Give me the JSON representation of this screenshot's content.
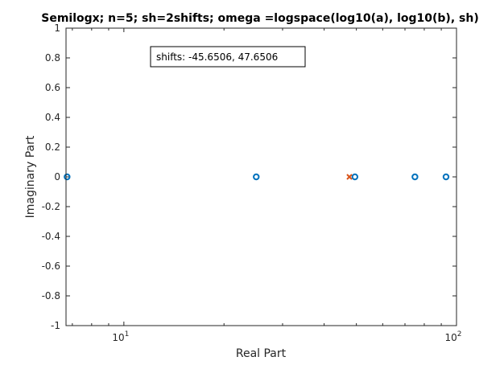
{
  "chart_data": {
    "type": "scatter",
    "title": "Semilogx; n=5; sh=2shifts; omega =logspace(log10(a), log10(b), sh)",
    "xlabel": "Real Part",
    "ylabel": "Imaginary Part",
    "xscale": "log",
    "xlim": [
      6.7,
      100
    ],
    "ylim": [
      -1,
      1
    ],
    "x_ticks": [
      {
        "value": 10,
        "base": "10",
        "exp": "1"
      },
      {
        "value": 100,
        "base": "10",
        "exp": "2"
      }
    ],
    "y_ticks": [
      {
        "value": 1,
        "label": "1"
      },
      {
        "value": 0.8,
        "label": "0.8"
      },
      {
        "value": 0.6,
        "label": "0.6"
      },
      {
        "value": 0.4,
        "label": "0.4"
      },
      {
        "value": 0.2,
        "label": "0.2"
      },
      {
        "value": 0,
        "label": "0"
      },
      {
        "value": -0.2,
        "label": "-0.2"
      },
      {
        "value": -0.4,
        "label": "-0.4"
      },
      {
        "value": -0.6,
        "label": "-0.6"
      },
      {
        "value": -0.8,
        "label": "-0.8"
      },
      {
        "value": -1,
        "label": "-1"
      }
    ],
    "series": [
      {
        "marker": "circle",
        "color": "#0072BD",
        "points": [
          {
            "x": 6.75,
            "y": 0
          },
          {
            "x": 25.0,
            "y": 0
          },
          {
            "x": 49.5,
            "y": 0
          },
          {
            "x": 75.0,
            "y": 0
          },
          {
            "x": 93.0,
            "y": 0
          }
        ]
      },
      {
        "marker": "cross",
        "color": "#D95319",
        "points": [
          {
            "x": 47.65,
            "y": 0
          }
        ]
      }
    ],
    "annotation": "shifts: -45.6506, 47.6506",
    "grid": false,
    "box": true
  }
}
